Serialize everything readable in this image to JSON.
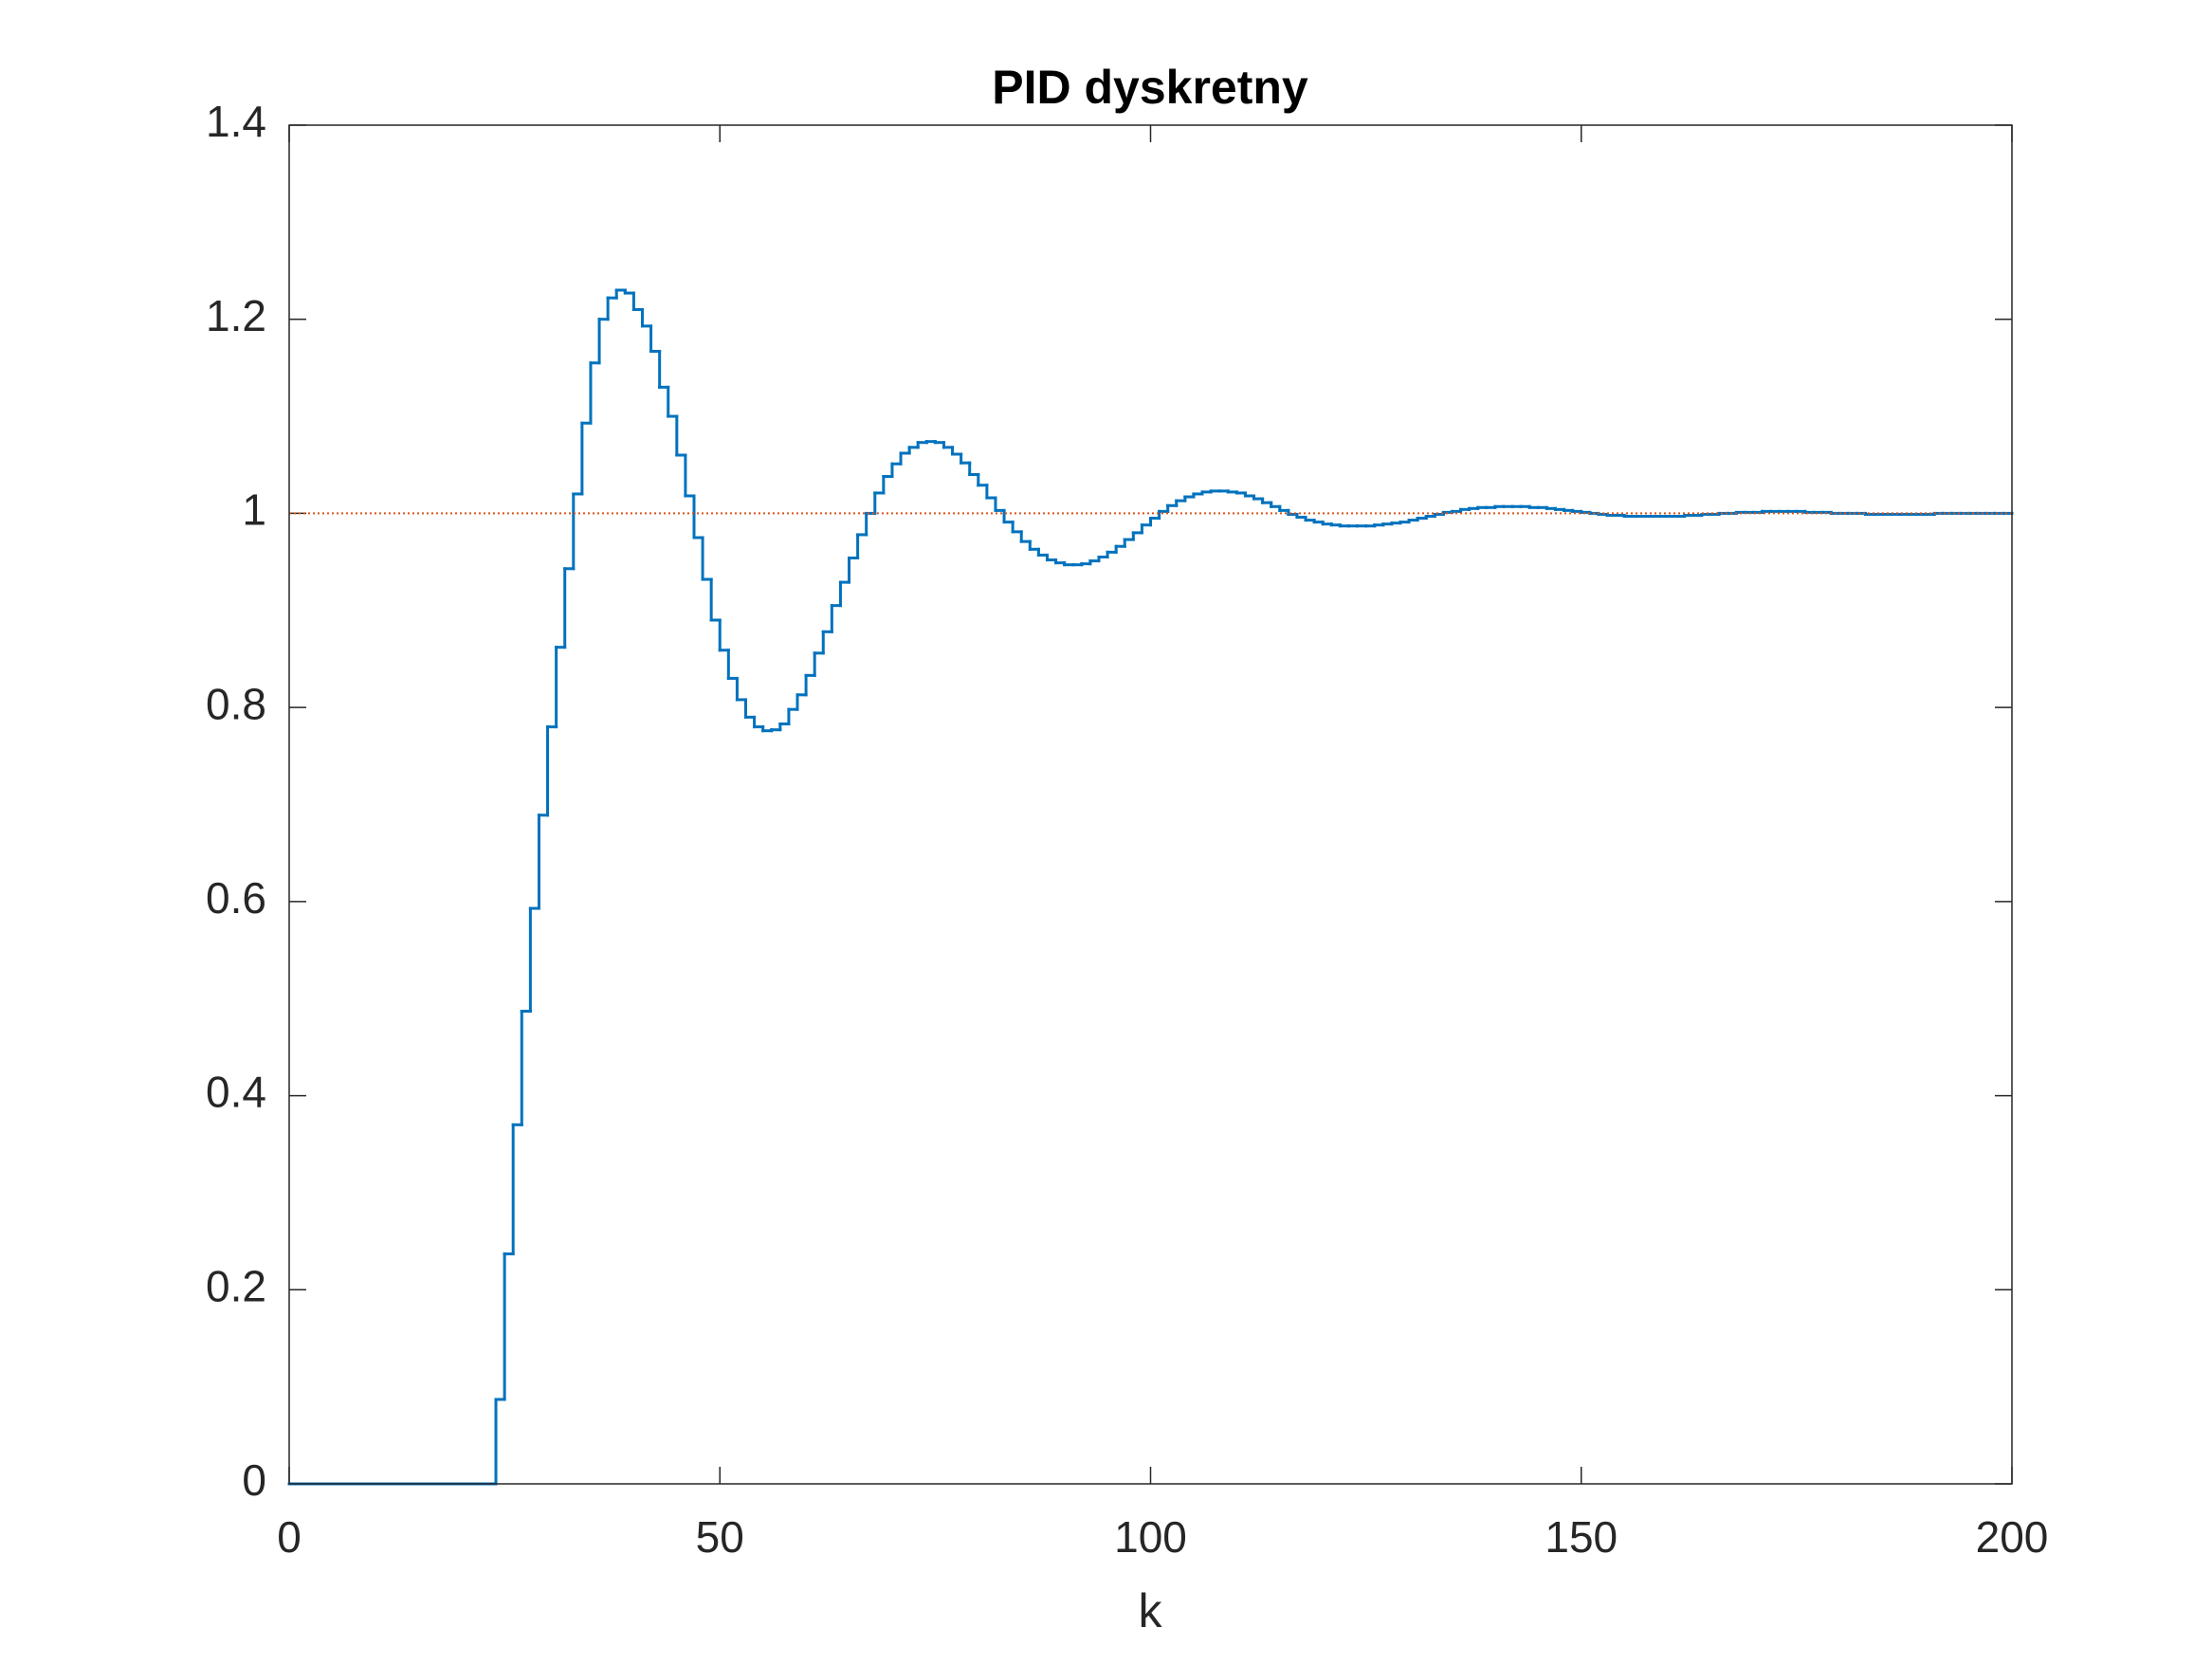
{
  "chart_data": {
    "type": "stairs",
    "title": "PID dyskretny",
    "xlabel": "k",
    "xlim": [
      0,
      200
    ],
    "ylim": [
      0,
      1.4
    ],
    "xticks": [
      0,
      50,
      100,
      150,
      200
    ],
    "yticks": [
      0,
      0.2,
      0.4,
      0.6,
      0.8,
      1,
      1.2,
      1.4
    ],
    "grid": false,
    "series": [
      {
        "color": "#0072bd",
        "style": "solid",
        "x": [
          0,
          1,
          2,
          3,
          4,
          5,
          6,
          7,
          8,
          9,
          10,
          11,
          12,
          13,
          14,
          15,
          16,
          17,
          18,
          19,
          20,
          21,
          22,
          23,
          24,
          25,
          26,
          27,
          28,
          29,
          30,
          31,
          32,
          33,
          34,
          35,
          36,
          37,
          38,
          39,
          40,
          41,
          42,
          43,
          44,
          45,
          46,
          47,
          48,
          49,
          50,
          51,
          52,
          53,
          54,
          55,
          56,
          57,
          58,
          59,
          60,
          61,
          62,
          63,
          64,
          65,
          66,
          67,
          68,
          69,
          70,
          71,
          72,
          73,
          74,
          75,
          76,
          77,
          78,
          79,
          80,
          81,
          82,
          83,
          84,
          85,
          86,
          87,
          88,
          89,
          90,
          91,
          92,
          93,
          94,
          95,
          96,
          97,
          98,
          99,
          100,
          101,
          102,
          103,
          104,
          105,
          106,
          107,
          108,
          109,
          110,
          111,
          112,
          113,
          114,
          115,
          116,
          117,
          118,
          119,
          120,
          121,
          122,
          123,
          124,
          125,
          126,
          127,
          128,
          129,
          130,
          131,
          132,
          133,
          134,
          135,
          136,
          137,
          138,
          139,
          140,
          141,
          142,
          143,
          144,
          145,
          146,
          147,
          148,
          149,
          150,
          151,
          152,
          153,
          154,
          155,
          156,
          157,
          158,
          159,
          160,
          161,
          162,
          163,
          164,
          165,
          166,
          167,
          168,
          169,
          170,
          171,
          172,
          173,
          174,
          175,
          176,
          177,
          178,
          179,
          180,
          181,
          182,
          183,
          184,
          185,
          186,
          187,
          188,
          189,
          190,
          191,
          192,
          193,
          194,
          195,
          196,
          197,
          198,
          199,
          200
        ],
        "values": [
          0,
          0,
          0,
          0,
          0,
          0,
          0,
          0,
          0,
          0,
          0,
          0,
          0,
          0,
          0,
          0,
          0,
          0,
          0,
          0,
          0,
          0,
          0,
          0,
          0.087,
          0.237,
          0.37,
          0.487,
          0.593,
          0.689,
          0.78,
          0.862,
          0.943,
          1.02,
          1.093,
          1.155,
          1.2,
          1.222,
          1.23,
          1.227,
          1.21,
          1.193,
          1.167,
          1.13,
          1.1,
          1.06,
          1.018,
          0.975,
          0.932,
          0.89,
          0.859,
          0.83,
          0.808,
          0.79,
          0.78,
          0.776,
          0.777,
          0.783,
          0.798,
          0.813,
          0.833,
          0.856,
          0.878,
          0.905,
          0.929,
          0.954,
          0.978,
          1.0,
          1.021,
          1.038,
          1.051,
          1.062,
          1.068,
          1.073,
          1.074,
          1.073,
          1.068,
          1.061,
          1.052,
          1.04,
          1.029,
          1.016,
          1.003,
          0.991,
          0.981,
          0.971,
          0.963,
          0.957,
          0.952,
          0.949,
          0.947,
          0.947,
          0.948,
          0.951,
          0.955,
          0.96,
          0.966,
          0.973,
          0.98,
          0.988,
          0.995,
          1.002,
          1.008,
          1.013,
          1.017,
          1.02,
          1.022,
          1.023,
          1.023,
          1.022,
          1.021,
          1.018,
          1.015,
          1.011,
          1.007,
          1.003,
          0.999,
          0.996,
          0.993,
          0.991,
          0.989,
          0.988,
          0.987,
          0.987,
          0.987,
          0.987,
          0.988,
          0.989,
          0.99,
          0.991,
          0.993,
          0.995,
          0.997,
          0.999,
          1.001,
          1.002,
          1.004,
          1.005,
          1.006,
          1.006,
          1.007,
          1.007,
          1.007,
          1.007,
          1.006,
          1.006,
          1.005,
          1.004,
          1.003,
          1.002,
          1.001,
          1.0,
          0.999,
          0.998,
          0.998,
          0.997,
          0.997,
          0.997,
          0.997,
          0.997,
          0.997,
          0.997,
          0.998,
          0.998,
          0.999,
          0.999,
          1.0,
          1.0,
          1.001,
          1.001,
          1.001,
          1.002,
          1.002,
          1.002,
          1.002,
          1.002,
          1.001,
          1.001,
          1.001,
          1.0,
          1.0,
          1.0,
          1.0,
          0.999,
          0.999,
          0.999,
          0.999,
          0.999,
          0.999,
          0.999,
          0.999,
          1.0,
          1.0,
          1.0,
          1.0,
          1.0,
          1.0,
          1.0,
          1.0,
          1.0,
          1.0
        ]
      },
      {
        "color": "#d95319",
        "style": "dotted",
        "x": [
          0,
          200
        ],
        "values": [
          1,
          1
        ]
      }
    ]
  }
}
